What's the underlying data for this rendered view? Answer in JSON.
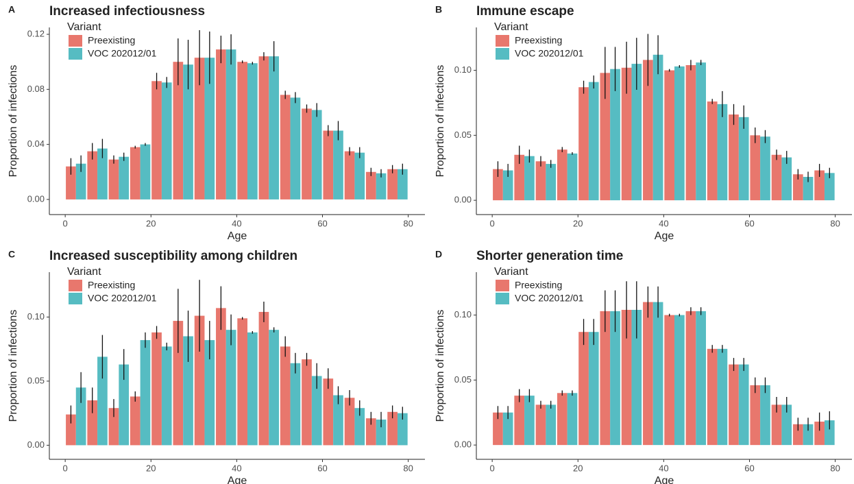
{
  "chart_data": [
    {
      "type": "bar",
      "label": "A",
      "title": "Increased infectiousness",
      "x_label": "Age",
      "y_label": "Proportion of infections",
      "legend_title": "Variant",
      "legend": "top-left",
      "x": [
        2.5,
        7.5,
        12.5,
        17.5,
        22.5,
        27.5,
        32.5,
        37.5,
        42.5,
        47.5,
        52.5,
        57.5,
        62.5,
        67.5,
        72.5,
        77.5
      ],
      "xlim": [
        -3.7,
        83.9
      ],
      "xticks": [
        0,
        20,
        40,
        60,
        80
      ],
      "ylim": [
        -0.011,
        0.125
      ],
      "yticks": [
        {
          "value": 0,
          "label": "0.00"
        },
        {
          "value": 0.04,
          "label": "0.04"
        },
        {
          "value": 0.08,
          "label": "0.08"
        },
        {
          "value": 0.12,
          "label": "0.12"
        }
      ],
      "series": [
        {
          "name": "Preexisting",
          "color": "#e8776d",
          "values": [
            0.024,
            0.035,
            0.029,
            0.038,
            0.086,
            0.1,
            0.103,
            0.109,
            0.1,
            0.104,
            0.076,
            0.066,
            0.05,
            0.035,
            0.02,
            0.022
          ],
          "errors": [
            0.006,
            0.006,
            0.003,
            0.001,
            0.006,
            0.017,
            0.02,
            0.01,
            0.001,
            0.003,
            0.003,
            0.003,
            0.004,
            0.003,
            0.003,
            0.003
          ]
        },
        {
          "name": "VOC 202012/01",
          "color": "#56bcc2",
          "values": [
            0.026,
            0.037,
            0.031,
            0.04,
            0.085,
            0.098,
            0.103,
            0.109,
            0.099,
            0.104,
            0.074,
            0.065,
            0.05,
            0.034,
            0.019,
            0.022
          ],
          "errors": [
            0.006,
            0.007,
            0.003,
            0.001,
            0.004,
            0.018,
            0.019,
            0.011,
            0.001,
            0.011,
            0.004,
            0.005,
            0.007,
            0.004,
            0.003,
            0.004
          ]
        }
      ]
    },
    {
      "type": "bar",
      "label": "B",
      "title": "Immune escape",
      "x_label": "Age",
      "y_label": "Proportion of infections",
      "legend_title": "Variant",
      "legend": "top-left",
      "x": [
        2.5,
        7.5,
        12.5,
        17.5,
        22.5,
        27.5,
        32.5,
        37.5,
        42.5,
        47.5,
        52.5,
        57.5,
        62.5,
        67.5,
        72.5,
        77.5
      ],
      "xlim": [
        -3.7,
        83.9
      ],
      "xticks": [
        0,
        20,
        40,
        60,
        80
      ],
      "ylim": [
        -0.011,
        0.133
      ],
      "yticks": [
        {
          "value": 0,
          "label": "0.00"
        },
        {
          "value": 0.05,
          "label": "0.05"
        },
        {
          "value": 0.1,
          "label": "0.10"
        }
      ],
      "series": [
        {
          "name": "Preexisting",
          "color": "#e8776d",
          "values": [
            0.024,
            0.035,
            0.03,
            0.039,
            0.087,
            0.098,
            0.102,
            0.108,
            0.1,
            0.104,
            0.076,
            0.066,
            0.05,
            0.035,
            0.02,
            0.023
          ],
          "errors": [
            0.006,
            0.007,
            0.004,
            0.002,
            0.005,
            0.02,
            0.02,
            0.02,
            0.001,
            0.004,
            0.002,
            0.008,
            0.006,
            0.004,
            0.004,
            0.005
          ]
        },
        {
          "name": "VOC 202012/01",
          "color": "#56bcc2",
          "values": [
            0.023,
            0.034,
            0.028,
            0.036,
            0.091,
            0.101,
            0.105,
            0.112,
            0.103,
            0.106,
            0.074,
            0.064,
            0.049,
            0.033,
            0.018,
            0.021
          ],
          "errors": [
            0.005,
            0.005,
            0.003,
            0.001,
            0.005,
            0.017,
            0.02,
            0.015,
            0.001,
            0.002,
            0.01,
            0.009,
            0.005,
            0.005,
            0.004,
            0.004
          ]
        }
      ]
    },
    {
      "type": "bar",
      "label": "C",
      "title": "Increased susceptibility among children",
      "x_label": "Age",
      "y_label": "Proportion of infections",
      "legend_title": "Variant",
      "legend": "top-left",
      "x": [
        2.5,
        7.5,
        12.5,
        17.5,
        22.5,
        27.5,
        32.5,
        37.5,
        42.5,
        47.5,
        52.5,
        57.5,
        62.5,
        67.5,
        72.5,
        77.5
      ],
      "xlim": [
        -3.7,
        83.9
      ],
      "xticks": [
        0,
        20,
        40,
        60,
        80
      ],
      "ylim": [
        -0.011,
        0.135
      ],
      "yticks": [
        {
          "value": 0,
          "label": "0.00"
        },
        {
          "value": 0.05,
          "label": "0.05"
        },
        {
          "value": 0.1,
          "label": "0.10"
        }
      ],
      "series": [
        {
          "name": "Preexisting",
          "color": "#e8776d",
          "values": [
            0.024,
            0.035,
            0.029,
            0.038,
            0.088,
            0.097,
            0.101,
            0.107,
            0.099,
            0.104,
            0.077,
            0.067,
            0.052,
            0.037,
            0.021,
            0.026
          ],
          "errors": [
            0.007,
            0.01,
            0.007,
            0.004,
            0.005,
            0.025,
            0.028,
            0.017,
            0.001,
            0.008,
            0.008,
            0.005,
            0.008,
            0.006,
            0.005,
            0.005
          ]
        },
        {
          "name": "VOC 202012/01",
          "color": "#56bcc2",
          "values": [
            0.045,
            0.069,
            0.063,
            0.082,
            0.077,
            0.085,
            0.082,
            0.09,
            0.088,
            0.09,
            0.064,
            0.054,
            0.039,
            0.029,
            0.02,
            0.025
          ],
          "errors": [
            0.012,
            0.017,
            0.012,
            0.006,
            0.003,
            0.02,
            0.015,
            0.012,
            0.001,
            0.002,
            0.008,
            0.01,
            0.007,
            0.006,
            0.006,
            0.005
          ]
        }
      ]
    },
    {
      "type": "bar",
      "label": "D",
      "title": "Shorter generation time",
      "x_label": "Age",
      "y_label": "Proportion of infections",
      "legend_title": "Variant",
      "legend": "top-left",
      "x": [
        2.5,
        7.5,
        12.5,
        17.5,
        22.5,
        27.5,
        32.5,
        37.5,
        42.5,
        47.5,
        52.5,
        57.5,
        62.5,
        67.5,
        72.5,
        77.5
      ],
      "xlim": [
        -3.7,
        83.9
      ],
      "xticks": [
        0,
        20,
        40,
        60,
        80
      ],
      "ylim": [
        -0.011,
        0.133
      ],
      "yticks": [
        {
          "value": 0,
          "label": "0.00"
        },
        {
          "value": 0.05,
          "label": "0.05"
        },
        {
          "value": 0.1,
          "label": "0.10"
        }
      ],
      "series": [
        {
          "name": "Preexisting",
          "color": "#e8776d",
          "values": [
            0.025,
            0.038,
            0.031,
            0.04,
            0.087,
            0.103,
            0.104,
            0.11,
            0.1,
            0.103,
            0.074,
            0.062,
            0.046,
            0.031,
            0.016,
            0.018
          ],
          "errors": [
            0.005,
            0.005,
            0.003,
            0.002,
            0.01,
            0.016,
            0.022,
            0.012,
            0.001,
            0.003,
            0.003,
            0.005,
            0.006,
            0.006,
            0.005,
            0.007
          ]
        },
        {
          "name": "VOC 202012/01",
          "color": "#56bcc2",
          "values": [
            0.025,
            0.038,
            0.031,
            0.04,
            0.087,
            0.103,
            0.104,
            0.11,
            0.1,
            0.103,
            0.074,
            0.062,
            0.046,
            0.031,
            0.016,
            0.019
          ],
          "errors": [
            0.005,
            0.005,
            0.003,
            0.002,
            0.01,
            0.016,
            0.022,
            0.012,
            0.001,
            0.003,
            0.003,
            0.005,
            0.006,
            0.006,
            0.005,
            0.007
          ]
        }
      ]
    }
  ]
}
